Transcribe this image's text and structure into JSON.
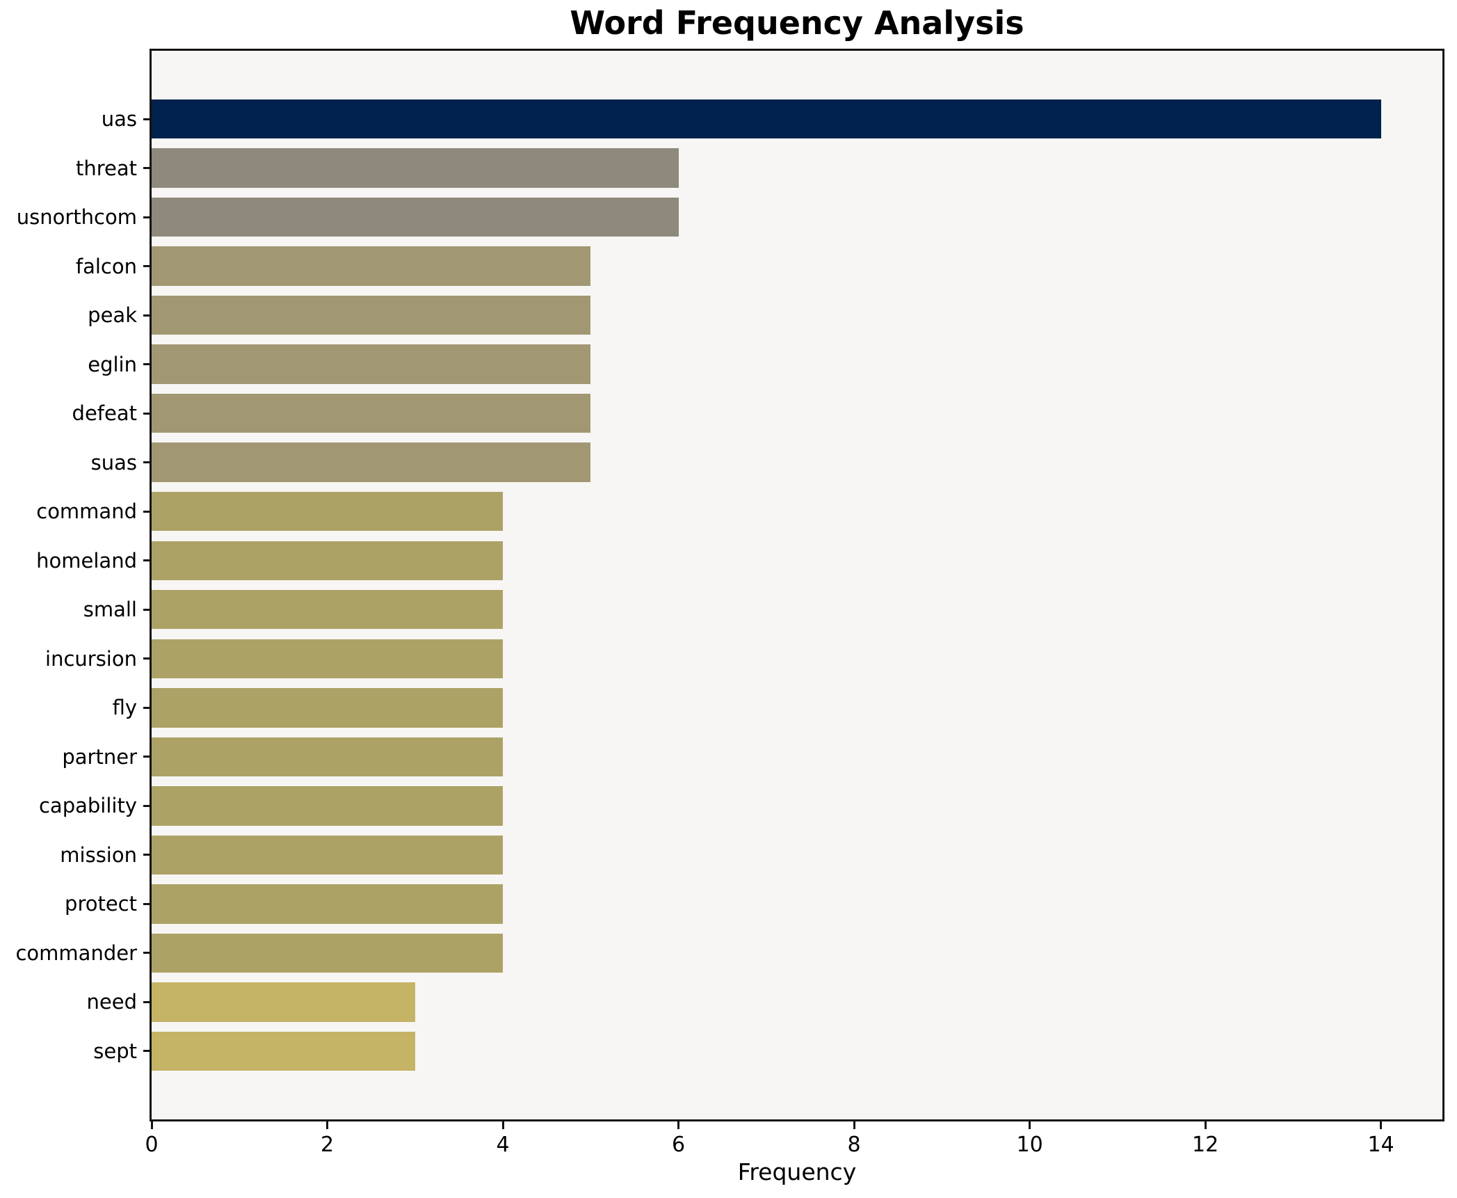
{
  "chart_data": {
    "type": "bar",
    "orientation": "horizontal",
    "title": "Word Frequency Analysis",
    "xlabel": "Frequency",
    "ylabel": "",
    "categories": [
      "uas",
      "threat",
      "usnorthcom",
      "falcon",
      "peak",
      "eglin",
      "defeat",
      "suas",
      "command",
      "homeland",
      "small",
      "incursion",
      "fly",
      "partner",
      "capability",
      "mission",
      "protect",
      "commander",
      "need",
      "sept"
    ],
    "values": [
      14,
      6,
      6,
      5,
      5,
      5,
      5,
      5,
      4,
      4,
      4,
      4,
      4,
      4,
      4,
      4,
      4,
      4,
      3,
      3
    ],
    "bar_colors": [
      "#01224d",
      "#8e897c",
      "#8e897c",
      "#a19873",
      "#a19873",
      "#a19873",
      "#a19873",
      "#a19873",
      "#ada266",
      "#ada266",
      "#ada266",
      "#ada266",
      "#ada266",
      "#ada266",
      "#ada266",
      "#ada266",
      "#ada266",
      "#ada266",
      "#c5b366",
      "#c5b366"
    ],
    "xlim": [
      0,
      14.7
    ],
    "xticks": [
      0,
      2,
      4,
      6,
      8,
      10,
      12,
      14
    ],
    "grid": false,
    "legend": false,
    "plot_bg": "#f7f6f4",
    "figure_bg": "#ffffff",
    "spine_color": "#141414",
    "text_color": "#000000"
  }
}
